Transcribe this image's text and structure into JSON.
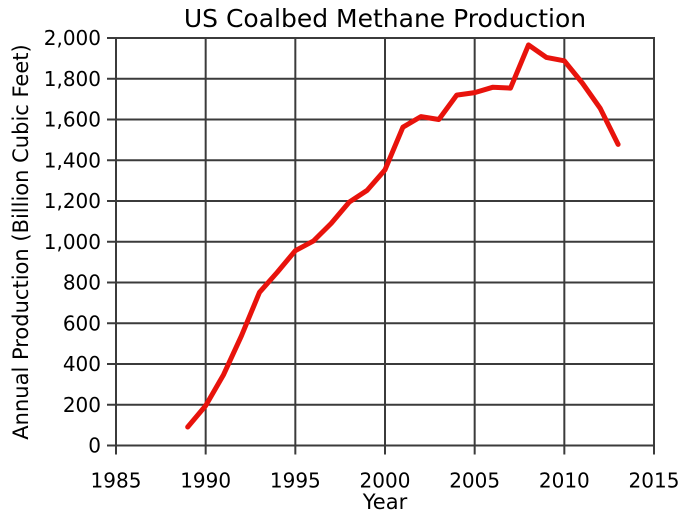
{
  "chart_data": {
    "type": "line",
    "title": "US Coalbed Methane Production",
    "xlabel": "Year",
    "ylabel": "Annual Production (Billion Cubic Feet)",
    "x": [
      1989,
      1990,
      1991,
      1992,
      1993,
      1994,
      1995,
      1996,
      1997,
      1998,
      1999,
      2000,
      2001,
      2002,
      2003,
      2004,
      2005,
      2006,
      2007,
      2008,
      2009,
      2010,
      2011,
      2012,
      2013
    ],
    "values": [
      91,
      196,
      348,
      539,
      752,
      851,
      956,
      1003,
      1090,
      1194,
      1252,
      1353,
      1562,
      1614,
      1600,
      1720,
      1732,
      1758,
      1754,
      1966,
      1905,
      1888,
      1779,
      1655,
      1478
    ],
    "xlim": [
      1985,
      2015
    ],
    "ylim": [
      0,
      2000
    ],
    "xticks": [
      1985,
      1990,
      1995,
      2000,
      2005,
      2010,
      2015
    ],
    "xtick_labels": [
      "1985",
      "1990",
      "1995",
      "2000",
      "2005",
      "2010",
      "2015"
    ],
    "yticks": [
      0,
      200,
      400,
      600,
      800,
      1000,
      1200,
      1400,
      1600,
      1800,
      2000
    ],
    "ytick_labels": [
      "0",
      "200",
      "400",
      "600",
      "800",
      "1,000",
      "1,200",
      "1,400",
      "1,600",
      "1,800",
      "2,000"
    ],
    "grid": true,
    "legend": "none",
    "line_color": "#e8130c",
    "grid_color": "#3b3b3b",
    "text_color": "#000000",
    "background": "#ffffff",
    "line_width": 5
  }
}
